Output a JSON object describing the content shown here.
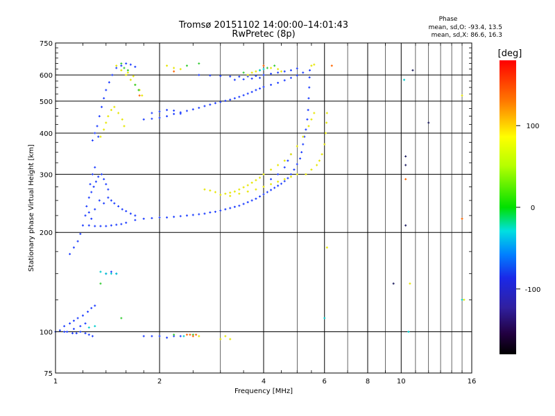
{
  "chart_data": {
    "type": "scatter",
    "title": "Tromsø 20151102 14:00:00–14:01:43",
    "subtitle": "RwPretec (8p)",
    "xlabel": "Frequency [MHz]",
    "ylabel": "Stationary phase Virtual Height [km]",
    "x_scale": "log",
    "y_scale": "log",
    "xlim": [
      1,
      16
    ],
    "ylim": [
      75,
      750
    ],
    "grid": true,
    "x_ticks": [
      1,
      2,
      4,
      6,
      8,
      10,
      16
    ],
    "y_ticks": [
      75,
      100,
      200,
      300,
      400,
      500,
      600,
      750
    ],
    "phase_box": {
      "heading": "Phase",
      "line1": "mean, sd,O: -93.4, 13.5",
      "line2": "mean, sd,X: 86.6, 16.3"
    },
    "colorbar": {
      "label": "[deg]",
      "range": [
        -180,
        180
      ],
      "ticks": [
        100,
        0,
        -100
      ],
      "tick_labels": [
        "100",
        "0",
        "-100"
      ]
    },
    "series": [
      {
        "points": [
          [
            1.0,
            100
          ],
          [
            1.03,
            101
          ],
          [
            1.06,
            100
          ],
          [
            1.08,
            100
          ],
          [
            1.12,
            99
          ],
          [
            1.15,
            99
          ],
          [
            1.18,
            100
          ],
          [
            1.22,
            99
          ],
          [
            1.25,
            98
          ],
          [
            1.28,
            97
          ],
          [
            1.06,
            104
          ],
          [
            1.1,
            106
          ],
          [
            1.13,
            108
          ],
          [
            1.16,
            110
          ],
          [
            1.2,
            112
          ],
          [
            1.24,
            115
          ],
          [
            1.27,
            118
          ],
          [
            1.3,
            120
          ],
          [
            1.13,
            102
          ],
          [
            1.18,
            104
          ],
          [
            1.22,
            106
          ],
          [
            1.1,
            172
          ],
          [
            1.13,
            180
          ],
          [
            1.16,
            188
          ],
          [
            1.18,
            198
          ],
          [
            1.2,
            210
          ],
          [
            1.22,
            225
          ],
          [
            1.23,
            240
          ],
          [
            1.25,
            255
          ],
          [
            1.27,
            265
          ],
          [
            1.29,
            275
          ],
          [
            1.31,
            285
          ],
          [
            1.33,
            295
          ],
          [
            1.36,
            300
          ],
          [
            1.38,
            290
          ],
          [
            1.4,
            280
          ],
          [
            1.42,
            270
          ],
          [
            1.26,
            280
          ],
          [
            1.28,
            300
          ],
          [
            1.3,
            315
          ],
          [
            1.25,
            230
          ],
          [
            1.27,
            220
          ],
          [
            1.3,
            235
          ],
          [
            1.34,
            250
          ],
          [
            1.38,
            245
          ],
          [
            1.42,
            255
          ],
          [
            1.45,
            250
          ],
          [
            1.48,
            245
          ],
          [
            1.52,
            240
          ],
          [
            1.56,
            235
          ],
          [
            1.6,
            232
          ],
          [
            1.65,
            228
          ],
          [
            1.7,
            225
          ],
          [
            1.25,
            210
          ],
          [
            1.3,
            209
          ],
          [
            1.35,
            209
          ],
          [
            1.4,
            209
          ],
          [
            1.45,
            210
          ],
          [
            1.5,
            211
          ],
          [
            1.55,
            212
          ],
          [
            1.6,
            214
          ],
          [
            1.7,
            218
          ],
          [
            1.8,
            220
          ],
          [
            1.9,
            221
          ],
          [
            2.0,
            222
          ],
          [
            2.1,
            222
          ],
          [
            2.2,
            223
          ],
          [
            2.3,
            224
          ],
          [
            2.4,
            225
          ],
          [
            2.5,
            226
          ],
          [
            2.6,
            227
          ],
          [
            2.7,
            228
          ],
          [
            2.8,
            230
          ],
          [
            2.9,
            231
          ],
          [
            3.0,
            233
          ],
          [
            3.1,
            235
          ],
          [
            3.2,
            237
          ],
          [
            3.3,
            239
          ],
          [
            3.4,
            241
          ],
          [
            3.5,
            244
          ],
          [
            3.6,
            247
          ],
          [
            3.7,
            250
          ],
          [
            3.8,
            253
          ],
          [
            3.9,
            257
          ],
          [
            4.0,
            261
          ],
          [
            4.1,
            265
          ],
          [
            4.2,
            269
          ],
          [
            4.3,
            273
          ],
          [
            4.4,
            277
          ],
          [
            4.5,
            281
          ],
          [
            4.6,
            286
          ],
          [
            4.7,
            292
          ],
          [
            4.8,
            300
          ],
          [
            4.9,
            310
          ],
          [
            5.0,
            322
          ],
          [
            5.1,
            335
          ],
          [
            5.15,
            350
          ],
          [
            5.2,
            370
          ],
          [
            5.25,
            390
          ],
          [
            5.3,
            410
          ],
          [
            5.35,
            440
          ],
          [
            5.38,
            470
          ],
          [
            5.4,
            510
          ],
          [
            5.42,
            550
          ],
          [
            5.43,
            590
          ],
          [
            5.44,
            620
          ],
          [
            4.2,
            290
          ],
          [
            4.4,
            300
          ],
          [
            4.6,
            315
          ],
          [
            4.7,
            330
          ],
          [
            4.8,
            345
          ],
          [
            1.3,
            400
          ],
          [
            1.32,
            420
          ],
          [
            1.34,
            450
          ],
          [
            1.36,
            480
          ],
          [
            1.38,
            510
          ],
          [
            1.4,
            540
          ],
          [
            1.43,
            570
          ],
          [
            1.46,
            600
          ],
          [
            1.5,
            630
          ],
          [
            1.28,
            380
          ],
          [
            1.33,
            390
          ],
          [
            1.8,
            440
          ],
          [
            1.9,
            442
          ],
          [
            2.0,
            445
          ],
          [
            2.1,
            450
          ],
          [
            2.2,
            457
          ],
          [
            2.3,
            462
          ],
          [
            2.4,
            467
          ],
          [
            2.5,
            472
          ],
          [
            2.6,
            477
          ],
          [
            2.7,
            483
          ],
          [
            2.8,
            488
          ],
          [
            2.9,
            493
          ],
          [
            3.0,
            497
          ],
          [
            3.1,
            501
          ],
          [
            3.2,
            505
          ],
          [
            3.3,
            510
          ],
          [
            3.4,
            515
          ],
          [
            3.5,
            521
          ],
          [
            3.6,
            527
          ],
          [
            3.7,
            533
          ],
          [
            3.8,
            540
          ],
          [
            3.9,
            546
          ],
          [
            4.0,
            552
          ],
          [
            4.2,
            560
          ],
          [
            4.4,
            568
          ],
          [
            4.6,
            578
          ],
          [
            4.8,
            588
          ],
          [
            5.0,
            598
          ],
          [
            5.2,
            610
          ],
          [
            1.9,
            460
          ],
          [
            2.0,
            465
          ],
          [
            2.1,
            470
          ],
          [
            2.2,
            468
          ],
          [
            2.3,
            458
          ],
          [
            2.6,
            600
          ],
          [
            2.8,
            598
          ],
          [
            3.0,
            596
          ],
          [
            3.2,
            594
          ],
          [
            3.4,
            593
          ],
          [
            3.6,
            594
          ],
          [
            3.8,
            596
          ],
          [
            4.0,
            600
          ],
          [
            4.2,
            605
          ],
          [
            4.4,
            610
          ],
          [
            4.6,
            615
          ],
          [
            4.8,
            620
          ],
          [
            5.0,
            628
          ],
          [
            3.3,
            580
          ],
          [
            3.5,
            582
          ],
          [
            3.7,
            585
          ],
          [
            3.9,
            588
          ],
          [
            1.55,
            640
          ],
          [
            1.6,
            650
          ],
          [
            1.65,
            645
          ],
          [
            1.7,
            635
          ],
          [
            1.8,
            97
          ],
          [
            1.9,
            97
          ],
          [
            2.0,
            97
          ],
          [
            2.1,
            96
          ],
          [
            2.2,
            97
          ],
          [
            2.3,
            97
          ],
          [
            1.4,
            150
          ],
          [
            1.45,
            152
          ],
          [
            1.5,
            150
          ]
        ],
        "color": "#1f3fff"
      },
      {
        "points": [
          [
            1.5,
            640
          ],
          [
            1.55,
            620
          ],
          [
            1.6,
            600
          ],
          [
            1.65,
            580
          ],
          [
            1.7,
            560
          ],
          [
            1.75,
            540
          ],
          [
            1.78,
            520
          ],
          [
            1.62,
            610
          ],
          [
            1.68,
            595
          ],
          [
            1.48,
            480
          ],
          [
            1.52,
            460
          ],
          [
            1.56,
            440
          ],
          [
            1.58,
            420
          ],
          [
            1.45,
            470
          ],
          [
            1.42,
            450
          ],
          [
            1.4,
            430
          ],
          [
            1.38,
            410
          ],
          [
            1.35,
            390
          ],
          [
            3.0,
            260
          ],
          [
            3.1,
            262
          ],
          [
            3.2,
            264
          ],
          [
            3.3,
            266
          ],
          [
            3.4,
            270
          ],
          [
            3.5,
            274
          ],
          [
            3.6,
            278
          ],
          [
            3.7,
            283
          ],
          [
            3.8,
            288
          ],
          [
            3.9,
            293
          ],
          [
            4.0,
            300
          ],
          [
            4.2,
            310
          ],
          [
            4.4,
            320
          ],
          [
            4.6,
            330
          ],
          [
            4.8,
            345
          ],
          [
            5.0,
            365
          ],
          [
            5.2,
            390
          ],
          [
            5.4,
            420
          ],
          [
            5.5,
            440
          ],
          [
            5.6,
            460
          ],
          [
            5.3,
            300
          ],
          [
            5.5,
            310
          ],
          [
            5.7,
            320
          ],
          [
            5.8,
            330
          ],
          [
            5.9,
            345
          ],
          [
            6.0,
            370
          ],
          [
            6.05,
            400
          ],
          [
            6.08,
            430
          ],
          [
            6.1,
            460
          ],
          [
            3.2,
            258
          ],
          [
            3.4,
            262
          ],
          [
            3.6,
            266
          ],
          [
            3.8,
            270
          ],
          [
            4.0,
            275
          ],
          [
            4.2,
            280
          ],
          [
            4.4,
            285
          ],
          [
            4.6,
            290
          ],
          [
            4.8,
            295
          ],
          [
            5.0,
            300
          ],
          [
            2.7,
            270
          ],
          [
            2.8,
            268
          ],
          [
            2.9,
            265
          ],
          [
            2.1,
            640
          ],
          [
            2.2,
            630
          ],
          [
            2.3,
            625
          ],
          [
            3.6,
            600
          ],
          [
            3.7,
            610
          ],
          [
            3.8,
            615
          ],
          [
            4.2,
            630
          ],
          [
            4.4,
            625
          ],
          [
            4.5,
            615
          ],
          [
            5.5,
            640
          ],
          [
            5.6,
            645
          ],
          [
            3.0,
            95
          ],
          [
            3.1,
            97
          ],
          [
            3.2,
            95
          ],
          [
            2.6,
            97
          ],
          [
            15.0,
            520
          ],
          [
            6.1,
            180
          ],
          [
            10.6,
            140
          ],
          [
            15.2,
            125
          ]
        ],
        "color": "#e6e600"
      },
      {
        "points": [
          [
            1.55,
            650
          ],
          [
            1.58,
            630
          ],
          [
            1.62,
            620
          ],
          [
            1.7,
            560
          ],
          [
            1.74,
            540
          ],
          [
            3.5,
            610
          ],
          [
            3.9,
            620
          ],
          [
            4.1,
            630
          ],
          [
            4.3,
            640
          ],
          [
            2.4,
            640
          ],
          [
            2.6,
            650
          ],
          [
            1.35,
            140
          ],
          [
            1.55,
            110
          ],
          [
            2.2,
            98
          ],
          [
            2.5,
            98
          ]
        ],
        "color": "#33cc33"
      },
      {
        "points": [
          [
            1.4,
            150
          ],
          [
            1.45,
            150
          ],
          [
            1.5,
            150
          ],
          [
            1.35,
            152
          ],
          [
            1.3,
            104
          ],
          [
            1.25,
            103
          ],
          [
            2.35,
            97
          ],
          [
            3.9,
            620
          ],
          [
            4.0,
            625
          ],
          [
            6.0,
            110
          ],
          [
            10.2,
            580
          ],
          [
            10.5,
            100
          ],
          [
            15.0,
            125
          ]
        ],
        "color": "#00cccc"
      },
      {
        "points": [
          [
            2.4,
            98
          ],
          [
            2.45,
            98
          ],
          [
            2.5,
            97
          ],
          [
            2.55,
            98
          ],
          [
            2.2,
            615
          ],
          [
            4.0,
            640
          ],
          [
            6.3,
            640
          ],
          [
            1.75,
            520
          ],
          [
            10.3,
            290
          ],
          [
            15.0,
            220
          ]
        ],
        "color": "#ff6600"
      },
      {
        "points": [
          [
            9.5,
            140
          ],
          [
            10.3,
            210
          ],
          [
            10.3,
            340
          ],
          [
            10.3,
            320
          ],
          [
            10.8,
            620
          ],
          [
            12.0,
            430
          ]
        ],
        "color": "#202060"
      }
    ]
  }
}
